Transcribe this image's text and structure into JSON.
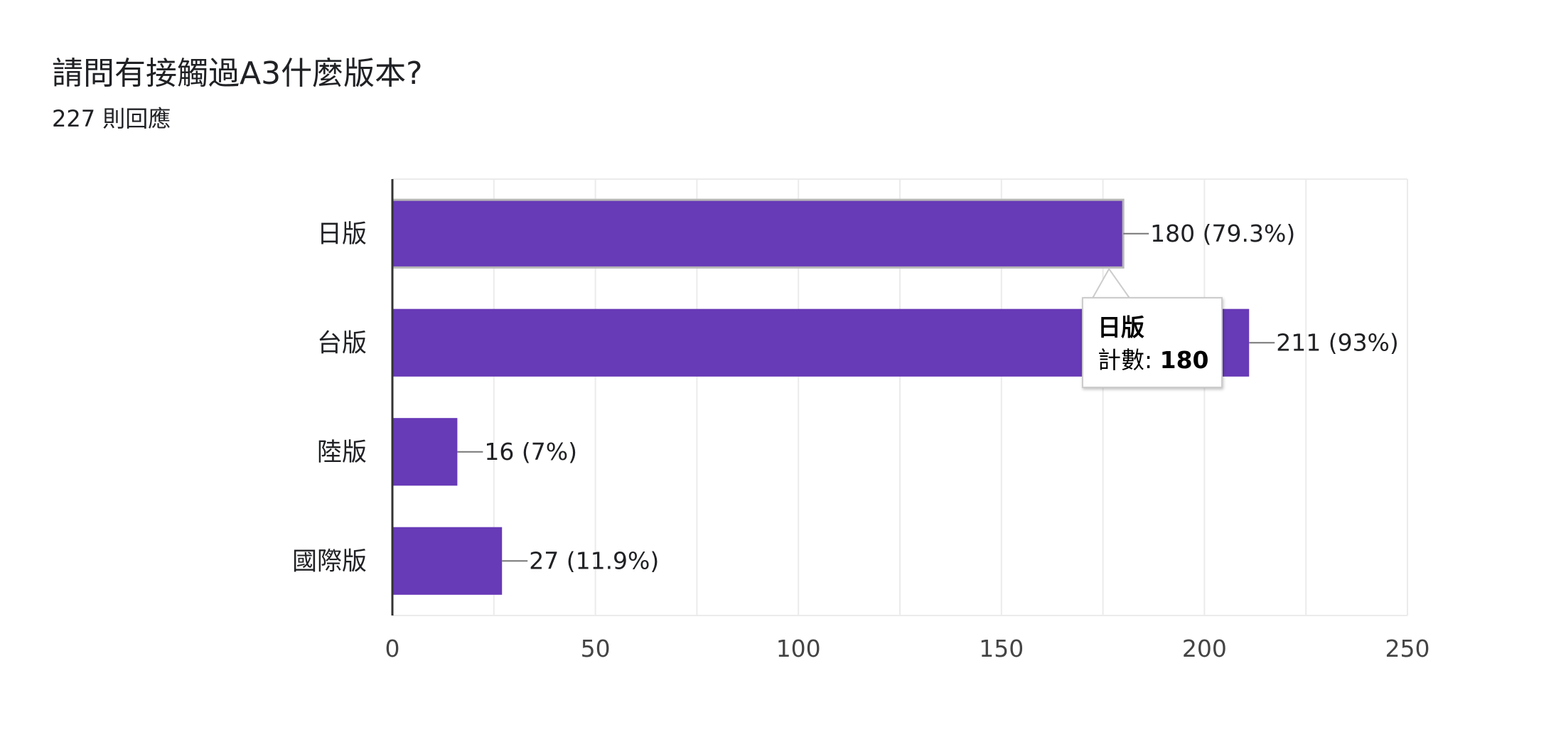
{
  "title": "請問有接觸過A3什麼版本?",
  "subtitle": "227 則回應",
  "colors": {
    "bar": "#673ab7",
    "grid": "#ebebeb",
    "axis": "#333333"
  },
  "chart_data": {
    "type": "bar",
    "orientation": "horizontal",
    "categories": [
      "日版",
      "台版",
      "陸版",
      "國際版"
    ],
    "values": [
      180,
      211,
      16,
      27
    ],
    "data_labels": [
      "180 (79.3%)",
      "211 (93%)",
      "16 (7%)",
      "27 (11.9%)"
    ],
    "xlim": [
      0,
      250
    ],
    "xticks": [
      0,
      50,
      100,
      150,
      200,
      250
    ],
    "grid": true,
    "highlighted_index": 0
  },
  "tooltip": {
    "category": "日版",
    "count_label": "計數:",
    "count_value": "180"
  }
}
